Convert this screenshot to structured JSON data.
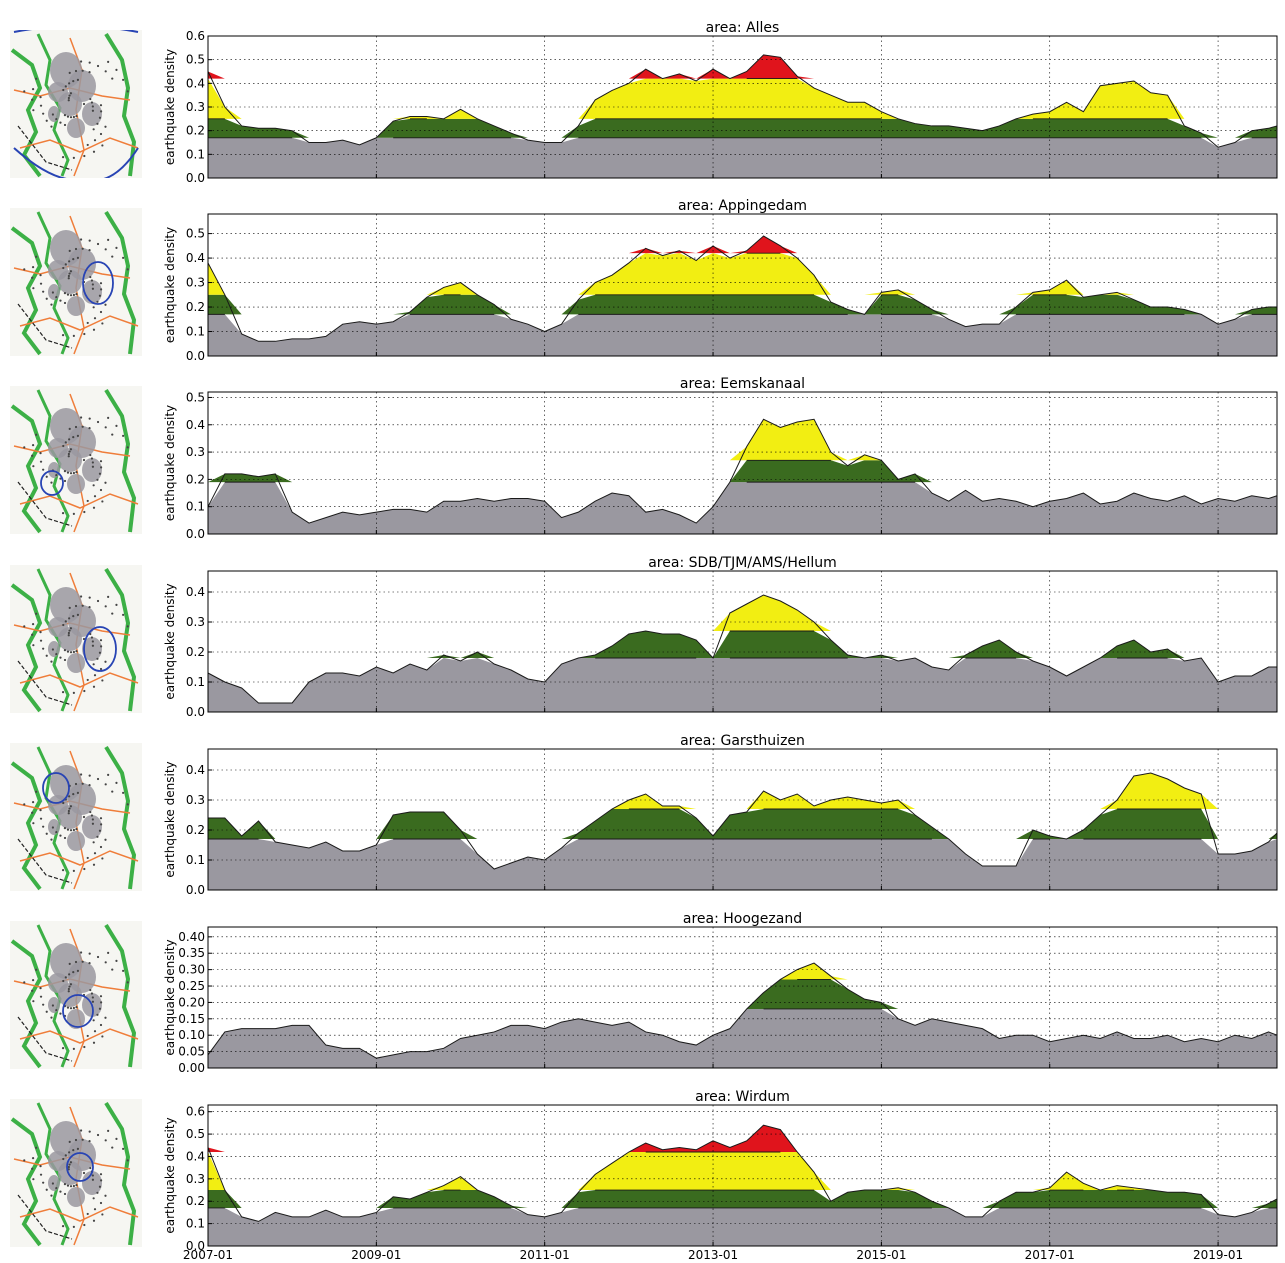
{
  "figure": {
    "panel_title_prefix": "area: ",
    "ylabel": "earthquake density",
    "x_tick_labels": [
      "2007-01",
      "2009-01",
      "2011-01",
      "2013-01",
      "2015-01",
      "2017-01",
      "2019-01"
    ]
  },
  "colors": {
    "base": "#9a98a0",
    "green": "#3a6b1f",
    "yellow": "#f2ee12",
    "red": "#e0141c",
    "map_land": "#f6f6f2",
    "map_green": "#3cb046",
    "map_orange": "#ef7d3a",
    "map_field": "#9a98a0",
    "map_region": "#2844b4"
  },
  "chart_data": [
    {
      "type": "area",
      "title": "area: Alles",
      "ylabel": "earthquake density",
      "ylim": [
        0,
        0.6
      ],
      "yticks": [
        0.0,
        0.1,
        0.2,
        0.3,
        0.4,
        0.5,
        0.6
      ],
      "yticklabels": [
        "0.0",
        "0.1",
        "0.2",
        "0.3",
        "0.4",
        "0.5",
        "0.6"
      ],
      "xlim": [
        2007.0,
        2019.7
      ],
      "grid": true,
      "thresholds": {
        "base": 0.17,
        "green": 0.25,
        "yellow": 0.42
      },
      "x": [
        2007.0,
        2007.2,
        2007.4,
        2007.6,
        2007.8,
        2008.0,
        2008.2,
        2008.4,
        2008.6,
        2008.8,
        2009.0,
        2009.2,
        2009.4,
        2009.6,
        2009.8,
        2010.0,
        2010.2,
        2010.4,
        2010.6,
        2010.8,
        2011.0,
        2011.2,
        2011.4,
        2011.6,
        2011.8,
        2012.0,
        2012.2,
        2012.4,
        2012.6,
        2012.8,
        2013.0,
        2013.2,
        2013.4,
        2013.6,
        2013.8,
        2014.0,
        2014.2,
        2014.4,
        2014.6,
        2014.8,
        2015.0,
        2015.2,
        2015.4,
        2015.6,
        2015.8,
        2016.0,
        2016.2,
        2016.4,
        2016.6,
        2016.8,
        2017.0,
        2017.2,
        2017.4,
        2017.6,
        2017.8,
        2018.0,
        2018.2,
        2018.4,
        2018.6,
        2018.8,
        2019.0,
        2019.2,
        2019.4,
        2019.6,
        2019.7
      ],
      "y": [
        0.45,
        0.3,
        0.22,
        0.21,
        0.21,
        0.2,
        0.15,
        0.15,
        0.16,
        0.14,
        0.17,
        0.24,
        0.26,
        0.26,
        0.25,
        0.29,
        0.25,
        0.22,
        0.19,
        0.16,
        0.15,
        0.15,
        0.22,
        0.33,
        0.37,
        0.4,
        0.46,
        0.42,
        0.44,
        0.41,
        0.46,
        0.42,
        0.45,
        0.52,
        0.51,
        0.43,
        0.38,
        0.35,
        0.32,
        0.32,
        0.28,
        0.25,
        0.23,
        0.22,
        0.22,
        0.21,
        0.2,
        0.22,
        0.25,
        0.27,
        0.28,
        0.32,
        0.28,
        0.39,
        0.4,
        0.41,
        0.36,
        0.35,
        0.22,
        0.19,
        0.13,
        0.15,
        0.2,
        0.21,
        0.22
      ]
    },
    {
      "type": "area",
      "title": "area: Appingedam",
      "ylabel": "earthquake density",
      "ylim": [
        0,
        0.58
      ],
      "yticks": [
        0.0,
        0.1,
        0.2,
        0.3,
        0.4,
        0.5
      ],
      "yticklabels": [
        "0.0",
        "0.1",
        "0.2",
        "0.3",
        "0.4",
        "0.5"
      ],
      "xlim": [
        2007.0,
        2019.7
      ],
      "grid": true,
      "thresholds": {
        "base": 0.17,
        "green": 0.25,
        "yellow": 0.42
      },
      "x": [
        2007.0,
        2007.2,
        2007.4,
        2007.6,
        2007.8,
        2008.0,
        2008.2,
        2008.4,
        2008.6,
        2008.8,
        2009.0,
        2009.2,
        2009.4,
        2009.6,
        2009.8,
        2010.0,
        2010.2,
        2010.4,
        2010.6,
        2010.8,
        2011.0,
        2011.2,
        2011.4,
        2011.6,
        2011.8,
        2012.0,
        2012.2,
        2012.4,
        2012.6,
        2012.8,
        2013.0,
        2013.2,
        2013.4,
        2013.6,
        2013.8,
        2014.0,
        2014.2,
        2014.4,
        2014.6,
        2014.8,
        2015.0,
        2015.2,
        2015.4,
        2015.6,
        2015.8,
        2016.0,
        2016.2,
        2016.4,
        2016.6,
        2016.8,
        2017.0,
        2017.2,
        2017.4,
        2017.6,
        2017.8,
        2018.0,
        2018.2,
        2018.4,
        2018.6,
        2018.8,
        2019.0,
        2019.2,
        2019.4,
        2019.6,
        2019.7
      ],
      "y": [
        0.38,
        0.25,
        0.09,
        0.06,
        0.06,
        0.07,
        0.07,
        0.08,
        0.13,
        0.14,
        0.13,
        0.14,
        0.18,
        0.24,
        0.28,
        0.3,
        0.25,
        0.21,
        0.15,
        0.13,
        0.1,
        0.13,
        0.23,
        0.3,
        0.33,
        0.38,
        0.44,
        0.41,
        0.43,
        0.39,
        0.45,
        0.4,
        0.43,
        0.49,
        0.45,
        0.4,
        0.33,
        0.22,
        0.19,
        0.17,
        0.26,
        0.27,
        0.23,
        0.19,
        0.15,
        0.12,
        0.13,
        0.13,
        0.2,
        0.26,
        0.27,
        0.31,
        0.24,
        0.25,
        0.26,
        0.23,
        0.2,
        0.2,
        0.19,
        0.17,
        0.13,
        0.15,
        0.19,
        0.2,
        0.2
      ]
    },
    {
      "type": "area",
      "title": "area: Eemskanaal",
      "ylabel": "earthquake density",
      "ylim": [
        0,
        0.52
      ],
      "yticks": [
        0.0,
        0.1,
        0.2,
        0.3,
        0.4,
        0.5
      ],
      "yticklabels": [
        "0.0",
        "0.1",
        "0.2",
        "0.3",
        "0.4",
        "0.5"
      ],
      "xlim": [
        2007.0,
        2019.7
      ],
      "grid": true,
      "thresholds": {
        "base": 0.19,
        "green": 0.27,
        "yellow": 0.42
      },
      "x": [
        2007.0,
        2007.2,
        2007.4,
        2007.6,
        2007.8,
        2008.0,
        2008.2,
        2008.4,
        2008.6,
        2008.8,
        2009.0,
        2009.2,
        2009.4,
        2009.6,
        2009.8,
        2010.0,
        2010.2,
        2010.4,
        2010.6,
        2010.8,
        2011.0,
        2011.2,
        2011.4,
        2011.6,
        2011.8,
        2012.0,
        2012.2,
        2012.4,
        2012.6,
        2012.8,
        2013.0,
        2013.2,
        2013.4,
        2013.6,
        2013.8,
        2014.0,
        2014.2,
        2014.4,
        2014.6,
        2014.8,
        2015.0,
        2015.2,
        2015.4,
        2015.6,
        2015.8,
        2016.0,
        2016.2,
        2016.4,
        2016.6,
        2016.8,
        2017.0,
        2017.2,
        2017.4,
        2017.6,
        2017.8,
        2018.0,
        2018.2,
        2018.4,
        2018.6,
        2018.8,
        2019.0,
        2019.2,
        2019.4,
        2019.6,
        2019.7
      ],
      "y": [
        0.1,
        0.22,
        0.22,
        0.21,
        0.22,
        0.08,
        0.04,
        0.06,
        0.08,
        0.07,
        0.08,
        0.09,
        0.09,
        0.08,
        0.12,
        0.12,
        0.13,
        0.12,
        0.13,
        0.13,
        0.12,
        0.06,
        0.08,
        0.12,
        0.15,
        0.14,
        0.08,
        0.09,
        0.07,
        0.04,
        0.1,
        0.19,
        0.32,
        0.42,
        0.39,
        0.41,
        0.42,
        0.3,
        0.25,
        0.29,
        0.27,
        0.2,
        0.22,
        0.15,
        0.12,
        0.16,
        0.12,
        0.13,
        0.12,
        0.1,
        0.12,
        0.13,
        0.15,
        0.11,
        0.12,
        0.15,
        0.13,
        0.12,
        0.14,
        0.11,
        0.13,
        0.12,
        0.14,
        0.13,
        0.14
      ]
    },
    {
      "type": "area",
      "title": "area: SDB/TJM/AMS/Hellum",
      "ylabel": "earthquake density",
      "ylim": [
        0,
        0.47
      ],
      "yticks": [
        0.0,
        0.1,
        0.2,
        0.3,
        0.4
      ],
      "yticklabels": [
        "0.0",
        "0.1",
        "0.2",
        "0.3",
        "0.4"
      ],
      "xlim": [
        2007.0,
        2019.7
      ],
      "grid": true,
      "thresholds": {
        "base": 0.18,
        "green": 0.27,
        "yellow": 0.42
      },
      "x": [
        2007.0,
        2007.2,
        2007.4,
        2007.6,
        2007.8,
        2008.0,
        2008.2,
        2008.4,
        2008.6,
        2008.8,
        2009.0,
        2009.2,
        2009.4,
        2009.6,
        2009.8,
        2010.0,
        2010.2,
        2010.4,
        2010.6,
        2010.8,
        2011.0,
        2011.2,
        2011.4,
        2011.6,
        2011.8,
        2012.0,
        2012.2,
        2012.4,
        2012.6,
        2012.8,
        2013.0,
        2013.2,
        2013.4,
        2013.6,
        2013.8,
        2014.0,
        2014.2,
        2014.4,
        2014.6,
        2014.8,
        2015.0,
        2015.2,
        2015.4,
        2015.6,
        2015.8,
        2016.0,
        2016.2,
        2016.4,
        2016.6,
        2016.8,
        2017.0,
        2017.2,
        2017.4,
        2017.6,
        2017.8,
        2018.0,
        2018.2,
        2018.4,
        2018.6,
        2018.8,
        2019.0,
        2019.2,
        2019.4,
        2019.6,
        2019.7
      ],
      "y": [
        0.13,
        0.1,
        0.08,
        0.03,
        0.03,
        0.03,
        0.1,
        0.13,
        0.13,
        0.12,
        0.15,
        0.13,
        0.16,
        0.14,
        0.19,
        0.17,
        0.2,
        0.16,
        0.14,
        0.11,
        0.1,
        0.16,
        0.18,
        0.19,
        0.22,
        0.26,
        0.27,
        0.26,
        0.26,
        0.24,
        0.18,
        0.33,
        0.36,
        0.39,
        0.37,
        0.34,
        0.3,
        0.24,
        0.19,
        0.18,
        0.19,
        0.17,
        0.18,
        0.15,
        0.14,
        0.19,
        0.22,
        0.24,
        0.2,
        0.17,
        0.15,
        0.12,
        0.15,
        0.18,
        0.22,
        0.24,
        0.2,
        0.21,
        0.17,
        0.18,
        0.1,
        0.12,
        0.12,
        0.15,
        0.15
      ]
    },
    {
      "type": "area",
      "title": "area: Garsthuizen",
      "ylabel": "earthquake density",
      "ylim": [
        0,
        0.47
      ],
      "yticks": [
        0.0,
        0.1,
        0.2,
        0.3,
        0.4
      ],
      "yticklabels": [
        "0.0",
        "0.1",
        "0.2",
        "0.3",
        "0.4"
      ],
      "xlim": [
        2007.0,
        2019.7
      ],
      "grid": true,
      "thresholds": {
        "base": 0.17,
        "green": 0.27,
        "yellow": 0.42
      },
      "x": [
        2007.0,
        2007.2,
        2007.4,
        2007.6,
        2007.8,
        2008.0,
        2008.2,
        2008.4,
        2008.6,
        2008.8,
        2009.0,
        2009.2,
        2009.4,
        2009.6,
        2009.8,
        2010.0,
        2010.2,
        2010.4,
        2010.6,
        2010.8,
        2011.0,
        2011.2,
        2011.4,
        2011.6,
        2011.8,
        2012.0,
        2012.2,
        2012.4,
        2012.6,
        2012.8,
        2013.0,
        2013.2,
        2013.4,
        2013.6,
        2013.8,
        2014.0,
        2014.2,
        2014.4,
        2014.6,
        2014.8,
        2015.0,
        2015.2,
        2015.4,
        2015.6,
        2015.8,
        2016.0,
        2016.2,
        2016.4,
        2016.6,
        2016.8,
        2017.0,
        2017.2,
        2017.4,
        2017.6,
        2017.8,
        2018.0,
        2018.2,
        2018.4,
        2018.6,
        2018.8,
        2019.0,
        2019.2,
        2019.4,
        2019.6,
        2019.7
      ],
      "y": [
        0.24,
        0.24,
        0.18,
        0.23,
        0.16,
        0.15,
        0.14,
        0.16,
        0.13,
        0.13,
        0.15,
        0.25,
        0.26,
        0.26,
        0.26,
        0.2,
        0.12,
        0.07,
        0.09,
        0.11,
        0.1,
        0.14,
        0.19,
        0.23,
        0.27,
        0.3,
        0.32,
        0.28,
        0.28,
        0.24,
        0.18,
        0.25,
        0.26,
        0.33,
        0.3,
        0.32,
        0.28,
        0.3,
        0.31,
        0.3,
        0.29,
        0.3,
        0.25,
        0.21,
        0.17,
        0.12,
        0.08,
        0.08,
        0.08,
        0.2,
        0.18,
        0.17,
        0.2,
        0.25,
        0.3,
        0.38,
        0.39,
        0.37,
        0.34,
        0.32,
        0.12,
        0.12,
        0.13,
        0.16,
        0.19
      ]
    },
    {
      "type": "area",
      "title": "area: Hoogezand",
      "ylabel": "earthquake density",
      "ylim": [
        0,
        0.43
      ],
      "yticks": [
        0.0,
        0.05,
        0.1,
        0.15,
        0.2,
        0.25,
        0.3,
        0.35,
        0.4
      ],
      "yticklabels": [
        "0.00",
        "0.05",
        "0.10",
        "0.15",
        "0.20",
        "0.25",
        "0.30",
        "0.35",
        "0.40"
      ],
      "xlim": [
        2007.0,
        2019.7
      ],
      "grid": true,
      "thresholds": {
        "base": 0.18,
        "green": 0.27,
        "yellow": 0.42
      },
      "x": [
        2007.0,
        2007.2,
        2007.4,
        2007.6,
        2007.8,
        2008.0,
        2008.2,
        2008.4,
        2008.6,
        2008.8,
        2009.0,
        2009.2,
        2009.4,
        2009.6,
        2009.8,
        2010.0,
        2010.2,
        2010.4,
        2010.6,
        2010.8,
        2011.0,
        2011.2,
        2011.4,
        2011.6,
        2011.8,
        2012.0,
        2012.2,
        2012.4,
        2012.6,
        2012.8,
        2013.0,
        2013.2,
        2013.4,
        2013.6,
        2013.8,
        2014.0,
        2014.2,
        2014.4,
        2014.6,
        2014.8,
        2015.0,
        2015.2,
        2015.4,
        2015.6,
        2015.8,
        2016.0,
        2016.2,
        2016.4,
        2016.6,
        2016.8,
        2017.0,
        2017.2,
        2017.4,
        2017.6,
        2017.8,
        2018.0,
        2018.2,
        2018.4,
        2018.6,
        2018.8,
        2019.0,
        2019.2,
        2019.4,
        2019.6,
        2019.7
      ],
      "y": [
        0.04,
        0.11,
        0.12,
        0.12,
        0.12,
        0.13,
        0.13,
        0.07,
        0.06,
        0.06,
        0.03,
        0.04,
        0.05,
        0.05,
        0.06,
        0.09,
        0.1,
        0.11,
        0.13,
        0.13,
        0.12,
        0.14,
        0.15,
        0.14,
        0.13,
        0.14,
        0.11,
        0.1,
        0.08,
        0.07,
        0.1,
        0.12,
        0.18,
        0.23,
        0.27,
        0.3,
        0.32,
        0.28,
        0.24,
        0.21,
        0.2,
        0.15,
        0.13,
        0.15,
        0.14,
        0.13,
        0.12,
        0.09,
        0.1,
        0.1,
        0.08,
        0.09,
        0.1,
        0.09,
        0.11,
        0.09,
        0.09,
        0.1,
        0.08,
        0.09,
        0.08,
        0.1,
        0.09,
        0.11,
        0.1
      ]
    },
    {
      "type": "area",
      "title": "area: Wirdum",
      "ylabel": "earthquake density",
      "ylim": [
        0,
        0.63
      ],
      "yticks": [
        0.0,
        0.1,
        0.2,
        0.3,
        0.4,
        0.5,
        0.6
      ],
      "yticklabels": [
        "0.0",
        "0.1",
        "0.2",
        "0.3",
        "0.4",
        "0.5",
        "0.6"
      ],
      "xlim": [
        2007.0,
        2019.7
      ],
      "grid": true,
      "thresholds": {
        "base": 0.17,
        "green": 0.25,
        "yellow": 0.42
      },
      "x": [
        2007.0,
        2007.2,
        2007.4,
        2007.6,
        2007.8,
        2008.0,
        2008.2,
        2008.4,
        2008.6,
        2008.8,
        2009.0,
        2009.2,
        2009.4,
        2009.6,
        2009.8,
        2010.0,
        2010.2,
        2010.4,
        2010.6,
        2010.8,
        2011.0,
        2011.2,
        2011.4,
        2011.6,
        2011.8,
        2012.0,
        2012.2,
        2012.4,
        2012.6,
        2012.8,
        2013.0,
        2013.2,
        2013.4,
        2013.6,
        2013.8,
        2014.0,
        2014.2,
        2014.4,
        2014.6,
        2014.8,
        2015.0,
        2015.2,
        2015.4,
        2015.6,
        2015.8,
        2016.0,
        2016.2,
        2016.4,
        2016.6,
        2016.8,
        2017.0,
        2017.2,
        2017.4,
        2017.6,
        2017.8,
        2018.0,
        2018.2,
        2018.4,
        2018.6,
        2018.8,
        2019.0,
        2019.2,
        2019.4,
        2019.6,
        2019.7
      ],
      "y": [
        0.44,
        0.25,
        0.13,
        0.11,
        0.15,
        0.13,
        0.13,
        0.16,
        0.13,
        0.13,
        0.15,
        0.22,
        0.21,
        0.24,
        0.27,
        0.31,
        0.25,
        0.22,
        0.18,
        0.14,
        0.13,
        0.15,
        0.24,
        0.32,
        0.37,
        0.42,
        0.46,
        0.43,
        0.44,
        0.43,
        0.47,
        0.44,
        0.47,
        0.54,
        0.52,
        0.42,
        0.33,
        0.2,
        0.24,
        0.25,
        0.25,
        0.26,
        0.24,
        0.2,
        0.17,
        0.13,
        0.13,
        0.2,
        0.24,
        0.24,
        0.26,
        0.33,
        0.28,
        0.25,
        0.27,
        0.26,
        0.25,
        0.24,
        0.24,
        0.23,
        0.14,
        0.13,
        0.15,
        0.19,
        0.21
      ]
    }
  ]
}
